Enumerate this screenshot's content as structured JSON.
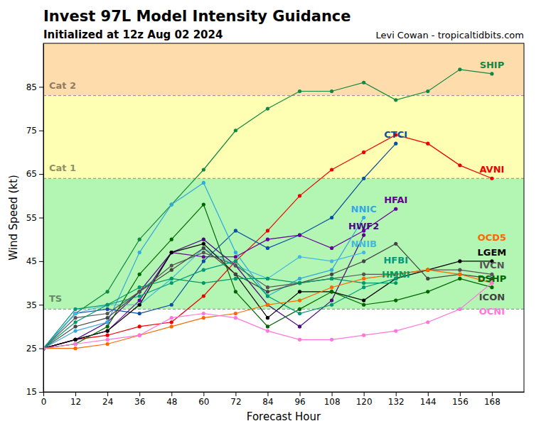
{
  "chart_data": {
    "type": "line",
    "title": "Invest 97L Model Intensity Guidance",
    "subtitle": "Initialized at 12z Aug 02 2024",
    "credit": "Levi Cowan - tropicaltidbits.com",
    "x_label": "Forecast Hour",
    "y_label": "Wind Speed (kt)",
    "x": [
      0,
      12,
      24,
      36,
      48,
      60,
      72,
      84,
      96,
      108,
      120,
      132,
      144,
      156,
      168
    ],
    "xlim": [
      0,
      180
    ],
    "xticks": [
      0,
      12,
      24,
      36,
      48,
      60,
      72,
      84,
      96,
      108,
      120,
      132,
      144,
      156,
      168
    ],
    "ylim": [
      15,
      95
    ],
    "yticks": [
      15,
      25,
      35,
      45,
      55,
      65,
      75,
      85
    ],
    "marker": "circle",
    "line_style": "solid",
    "bands": [
      {
        "name": "TS",
        "from": 34,
        "to": 64,
        "color": "#b3f5b3"
      },
      {
        "name": "Cat 1",
        "from": 64,
        "to": 83,
        "color": "#ffffb3"
      },
      {
        "name": "Cat 2",
        "from": 83,
        "to": 95,
        "color": "#ffdcac"
      }
    ],
    "series": [
      {
        "name": "SHIP",
        "color": "#118844",
        "values": [
          25,
          33,
          38,
          50,
          58,
          66,
          75,
          80,
          84,
          84,
          86,
          82,
          84,
          89,
          88
        ]
      },
      {
        "name": "AVNI",
        "color": "#ee0000",
        "values": [
          25,
          27,
          28,
          30,
          31,
          37,
          45,
          52,
          60,
          66,
          70,
          74,
          72,
          67,
          64
        ]
      },
      {
        "name": "CTCI",
        "color": "#0a4fa0",
        "values": [
          25,
          33,
          34,
          33,
          35,
          45,
          52,
          48,
          51,
          55,
          64,
          72,
          null,
          null,
          null
        ]
      },
      {
        "name": "HFAI",
        "color": "#660099",
        "values": [
          25,
          27,
          29,
          36,
          47,
          46,
          46,
          50,
          51,
          48,
          52,
          57,
          null,
          null,
          null
        ]
      },
      {
        "name": "HWF2",
        "color": "#4b0a80",
        "values": [
          25,
          27,
          31,
          38,
          47,
          50,
          44,
          35,
          30,
          36,
          51,
          null,
          null,
          null,
          null
        ]
      },
      {
        "name": "NNIC",
        "color": "#33aadd",
        "values": [
          25,
          29,
          31,
          47,
          58,
          63,
          47,
          37,
          41,
          43,
          55,
          null,
          null,
          null,
          null
        ]
      },
      {
        "name": "NNIB",
        "color": "#44b8e0",
        "values": [
          25,
          33,
          35,
          35,
          41,
          48,
          44,
          41,
          46,
          45,
          47,
          null,
          null,
          null,
          null
        ]
      },
      {
        "name": "LGEM",
        "color": "#000000",
        "values": [
          25,
          27,
          29,
          35,
          47,
          49,
          42,
          32,
          38,
          38,
          36,
          41,
          43,
          45,
          45
        ]
      },
      {
        "name": "DSHP",
        "color": "#006600",
        "values": [
          25,
          26,
          30,
          42,
          50,
          58,
          38,
          30,
          34,
          38,
          35,
          36,
          38,
          41,
          39
        ]
      },
      {
        "name": "ICON",
        "color": "#444444",
        "values": [
          25,
          30,
          32,
          38,
          43,
          48,
          42,
          38,
          40,
          42,
          45,
          49,
          41,
          42,
          41
        ]
      },
      {
        "name": "IVCN",
        "color": "#555555",
        "values": [
          25,
          32,
          33,
          38,
          44,
          47,
          44,
          39,
          40,
          41,
          42,
          42,
          43,
          43,
          42
        ]
      },
      {
        "name": "HMNI",
        "color": "#009966",
        "values": [
          25,
          31,
          35,
          39,
          41,
          40,
          41,
          41,
          40,
          41,
          40,
          40,
          null,
          null,
          null
        ]
      },
      {
        "name": "HFBI",
        "color": "#00997a",
        "values": [
          25,
          34,
          35,
          37,
          40,
          43,
          45,
          37,
          33,
          35,
          39,
          41,
          null,
          null,
          null
        ]
      },
      {
        "name": "OCD5",
        "color": "#ff6600",
        "values": [
          25,
          25,
          26,
          28,
          30,
          32,
          33,
          35,
          36,
          39,
          41,
          42,
          43,
          42,
          40
        ]
      },
      {
        "name": "OCNI",
        "color": "#ff77dd",
        "values": [
          25,
          26,
          27,
          28,
          32,
          33,
          32,
          29,
          27,
          27,
          28,
          29,
          31,
          34,
          40
        ]
      }
    ]
  }
}
